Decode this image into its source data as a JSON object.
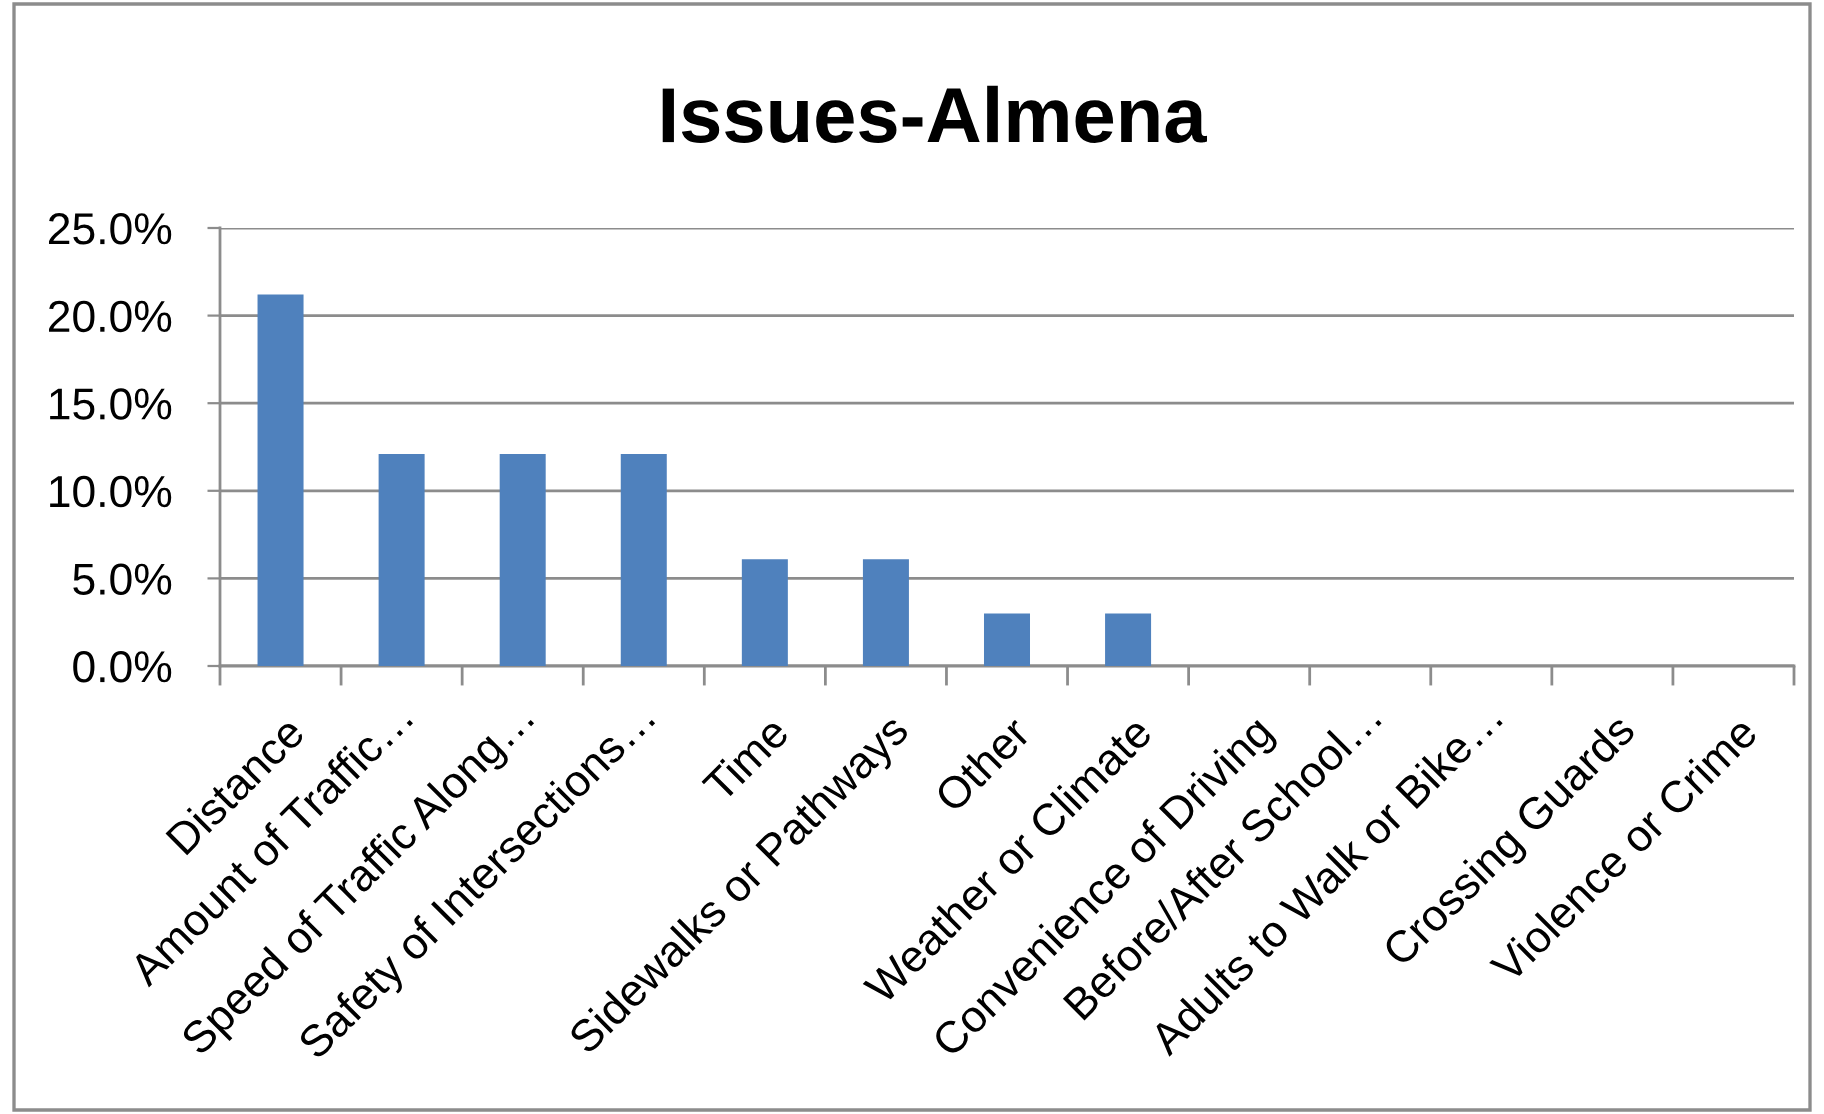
{
  "chart_data": {
    "type": "bar",
    "title": "Issues-Almena",
    "categories": [
      "Distance",
      "Amount of Traffic…",
      "Speed of Traffic Along…",
      "Safety of Intersections…",
      "Time",
      "Sidewalks or Pathways",
      "Other",
      "Weather or Climate",
      "Convenience of Driving",
      "Before/After School…",
      "Adults to Walk or Bike…",
      "Crossing Guards",
      "Violence or Crime"
    ],
    "values": [
      21.2,
      12.1,
      12.1,
      12.1,
      6.1,
      6.1,
      3.0,
      3.0,
      0,
      0,
      0,
      0,
      0
    ],
    "color": "#4f81bd",
    "ylim": [
      0,
      25
    ],
    "yticks": [
      {
        "value": 0,
        "label": "0.0%"
      },
      {
        "value": 5,
        "label": "5.0%"
      },
      {
        "value": 10,
        "label": "10.0%"
      },
      {
        "value": 15,
        "label": "15.0%"
      },
      {
        "value": 20,
        "label": "20.0%"
      },
      {
        "value": 25,
        "label": "25.0%"
      }
    ],
    "grid": "y"
  }
}
